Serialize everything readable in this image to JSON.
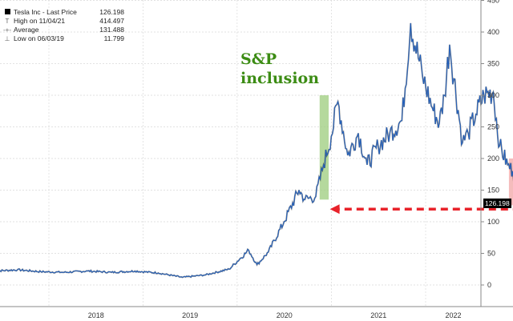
{
  "legend": {
    "items": [
      {
        "label": "Tesla Inc - Last Price",
        "value": "126.198",
        "icon": "filled-square-icon"
      },
      {
        "label": "High on 11/04/21",
        "value": "414.497",
        "icon": "t-marker-icon"
      },
      {
        "label": "Average",
        "value": "131.488",
        "icon": "dashed-line-icon"
      },
      {
        "label": "Low on 06/03/19",
        "value": "11.799",
        "icon": "inverted-t-marker-icon"
      }
    ]
  },
  "annotation": {
    "line1": "S&P",
    "line2": "inclusion"
  },
  "last_price_label": "126.198",
  "colors": {
    "price_line": "#1f5fbf",
    "shadow_line": "#222222",
    "sp_highlight": "#9ccc7c",
    "recent_highlight": "#f2a6a6",
    "arrow": "#e8222a",
    "annotation": "#3c8c14"
  },
  "chart_data": {
    "type": "line",
    "title": "",
    "xlabel": "",
    "ylabel": "",
    "ylim": [
      -25,
      450
    ],
    "y_ticks": [
      0,
      50,
      100,
      150,
      200,
      250,
      300,
      350,
      400,
      450
    ],
    "x_tick_labels": [
      "2018",
      "2019",
      "2020",
      "2021",
      "2022"
    ],
    "grid": true,
    "legend_position": "top-left",
    "series": [
      {
        "name": "Tesla Inc - Last Price",
        "x": [
          "2017-06-01",
          "2017-09-01",
          "2017-12-01",
          "2018-03-01",
          "2018-06-01",
          "2018-09-01",
          "2018-12-01",
          "2019-03-01",
          "2019-06-03",
          "2019-09-01",
          "2019-12-01",
          "2020-02-15",
          "2020-03-18",
          "2020-05-01",
          "2020-07-01",
          "2020-08-28",
          "2020-09-20",
          "2020-11-01",
          "2020-12-01",
          "2020-12-31",
          "2021-01-26",
          "2021-03-05",
          "2021-04-15",
          "2021-05-19",
          "2021-07-01",
          "2021-08-15",
          "2021-10-01",
          "2021-11-04",
          "2021-12-20",
          "2022-01-27",
          "2022-02-23",
          "2022-03-15",
          "2022-04-04",
          "2022-05-24",
          "2022-06-15",
          "2022-07-15",
          "2022-08-15",
          "2022-09-20",
          "2022-10-15",
          "2022-11-15",
          "2022-12-05",
          "2022-12-27"
        ],
        "values": [
          22,
          24,
          21,
          20,
          22,
          20,
          22,
          19,
          12,
          16,
          25,
          55,
          32,
          52,
          100,
          150,
          135,
          140,
          190,
          235,
          290,
          205,
          240,
          190,
          220,
          240,
          260,
          414,
          330,
          280,
          255,
          300,
          380,
          225,
          240,
          270,
          300,
          305,
          220,
          190,
          180,
          126
        ]
      }
    ],
    "annotations": [
      {
        "text": "S&P inclusion",
        "x_range": [
          "2020-11-16",
          "2020-12-21"
        ],
        "y_range": [
          135,
          300
        ]
      },
      {
        "text": "",
        "type": "highlight",
        "x_range": [
          "2022-11-20",
          "2022-12-31"
        ],
        "y_range": [
          126,
          200
        ]
      },
      {
        "text": "",
        "type": "arrow",
        "from_x": "2022-12-27",
        "to_x": "2020-12-01",
        "y": 120
      }
    ],
    "last_value": 126.198
  }
}
